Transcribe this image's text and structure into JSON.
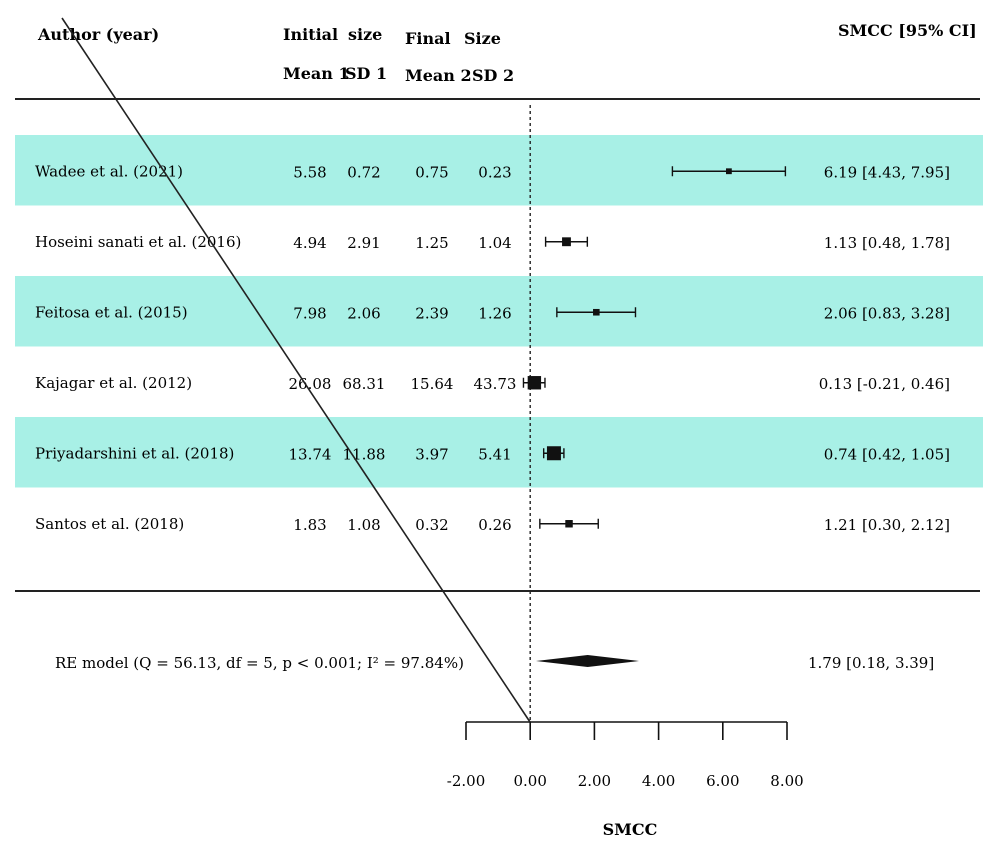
{
  "header": {
    "author": "Author (year)",
    "initial": "Initial",
    "size1": "size",
    "final": "Final",
    "size2": "Size",
    "mean1": "Mean 1",
    "sd1": "SD 1",
    "mean2": "Mean 2",
    "sd2": "SD 2",
    "effect": "SMCC [95% CI]"
  },
  "chart_data": {
    "type": "forest",
    "xlabel": "SMCC",
    "xlim": [
      -2,
      8
    ],
    "ticks": [
      -2,
      0,
      2,
      4,
      6,
      8
    ],
    "tick_labels": [
      "-2.00",
      "0.00",
      "2.00",
      "4.00",
      "6.00",
      "8.00"
    ],
    "reference_line": 0,
    "shaded_color": "#a8f0e6",
    "studies": [
      {
        "label": "Wadee et al. (2021)",
        "mean1": "5.58",
        "sd1": "0.72",
        "mean2": "0.75",
        "sd2": "0.23",
        "est": 6.19,
        "lo": 4.43,
        "hi": 7.95,
        "ci_text": "6.19 [4.43, 7.95]",
        "shaded": true
      },
      {
        "label": "Hoseini sanati et al. (2016)",
        "mean1": "4.94",
        "sd1": "2.91",
        "mean2": "1.25",
        "sd2": "1.04",
        "est": 1.13,
        "lo": 0.48,
        "hi": 1.78,
        "ci_text": "1.13 [0.48, 1.78]",
        "shaded": false
      },
      {
        "label": "Feitosa et al. (2015)",
        "mean1": "7.98",
        "sd1": "2.06",
        "mean2": "2.39",
        "sd2": "1.26",
        "est": 2.06,
        "lo": 0.83,
        "hi": 3.28,
        "ci_text": "2.06 [0.83, 3.28]",
        "shaded": true
      },
      {
        "label": "Kajagar et al. (2012)",
        "mean1": "26.08",
        "sd1": "68.31",
        "mean2": "15.64",
        "sd2": "43.73",
        "est": 0.13,
        "lo": -0.21,
        "hi": 0.46,
        "ci_text": "0.13 [-0.21, 0.46]",
        "shaded": false
      },
      {
        "label": "Priyadarshini et al. (2018)",
        "mean1": "13.74",
        "sd1": "11.88",
        "mean2": "3.97",
        "sd2": "5.41",
        "est": 0.74,
        "lo": 0.42,
        "hi": 1.05,
        "ci_text": "0.74 [0.42, 1.05]",
        "shaded": true
      },
      {
        "label": "Santos et al. (2018)",
        "mean1": "1.83",
        "sd1": "1.08",
        "mean2": "0.32",
        "sd2": "0.26",
        "est": 1.21,
        "lo": 0.3,
        "hi": 2.12,
        "ci_text": "1.21 [0.30, 2.12]",
        "shaded": false
      }
    ],
    "summary": {
      "label": "RE model (Q = 56.13, df = 5, p < 0.001; I² = 97.84%)",
      "est": 1.79,
      "lo": 0.18,
      "hi": 3.39,
      "ci_text": "1.79 [0.18, 3.39]"
    }
  }
}
